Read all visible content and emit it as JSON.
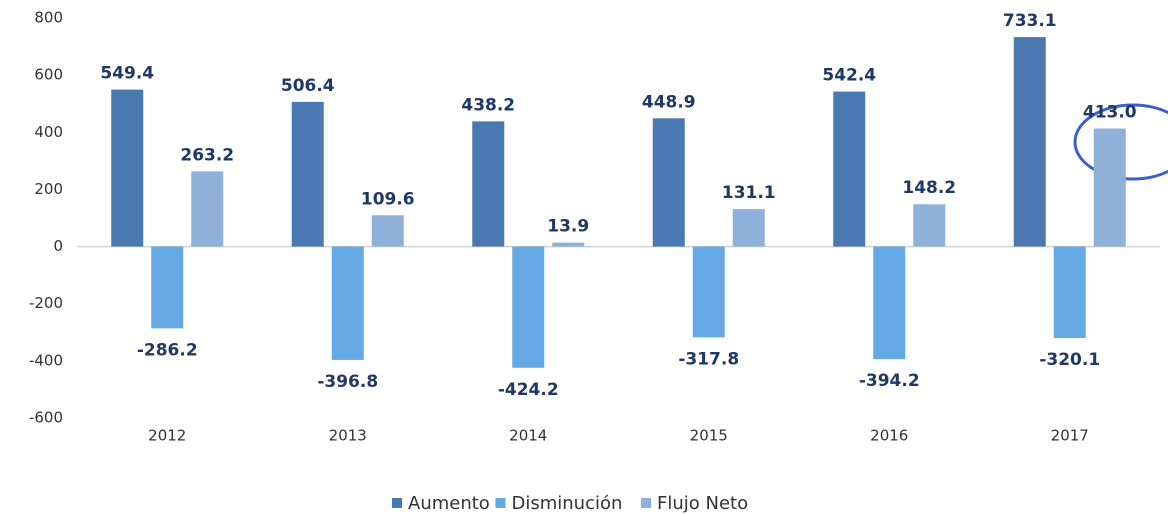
{
  "chart_data": {
    "type": "bar",
    "categories": [
      "2012",
      "2013",
      "2014",
      "2015",
      "2016",
      "2017"
    ],
    "series": [
      {
        "name": "Aumento",
        "color": "#4a78b0",
        "values": [
          549.4,
          506.4,
          438.2,
          448.9,
          542.4,
          733.1
        ]
      },
      {
        "name": "Disminución",
        "color": "#65a9e4",
        "values": [
          -286.2,
          -396.8,
          -424.2,
          -317.8,
          -394.2,
          -320.1
        ]
      },
      {
        "name": "Flujo Neto",
        "color": "#8fb0d8",
        "values": [
          263.2,
          109.6,
          13.9,
          131.1,
          148.2,
          413
        ],
        "value_labels": [
          "263.2",
          "109.6",
          "13.9",
          "131.1",
          "148.2",
          "413.0"
        ]
      }
    ],
    "ylim": [
      -600,
      800
    ],
    "yticks": [
      -600,
      -400,
      -200,
      0,
      200,
      400,
      600,
      800
    ],
    "grid": false,
    "legend": "bottom"
  }
}
